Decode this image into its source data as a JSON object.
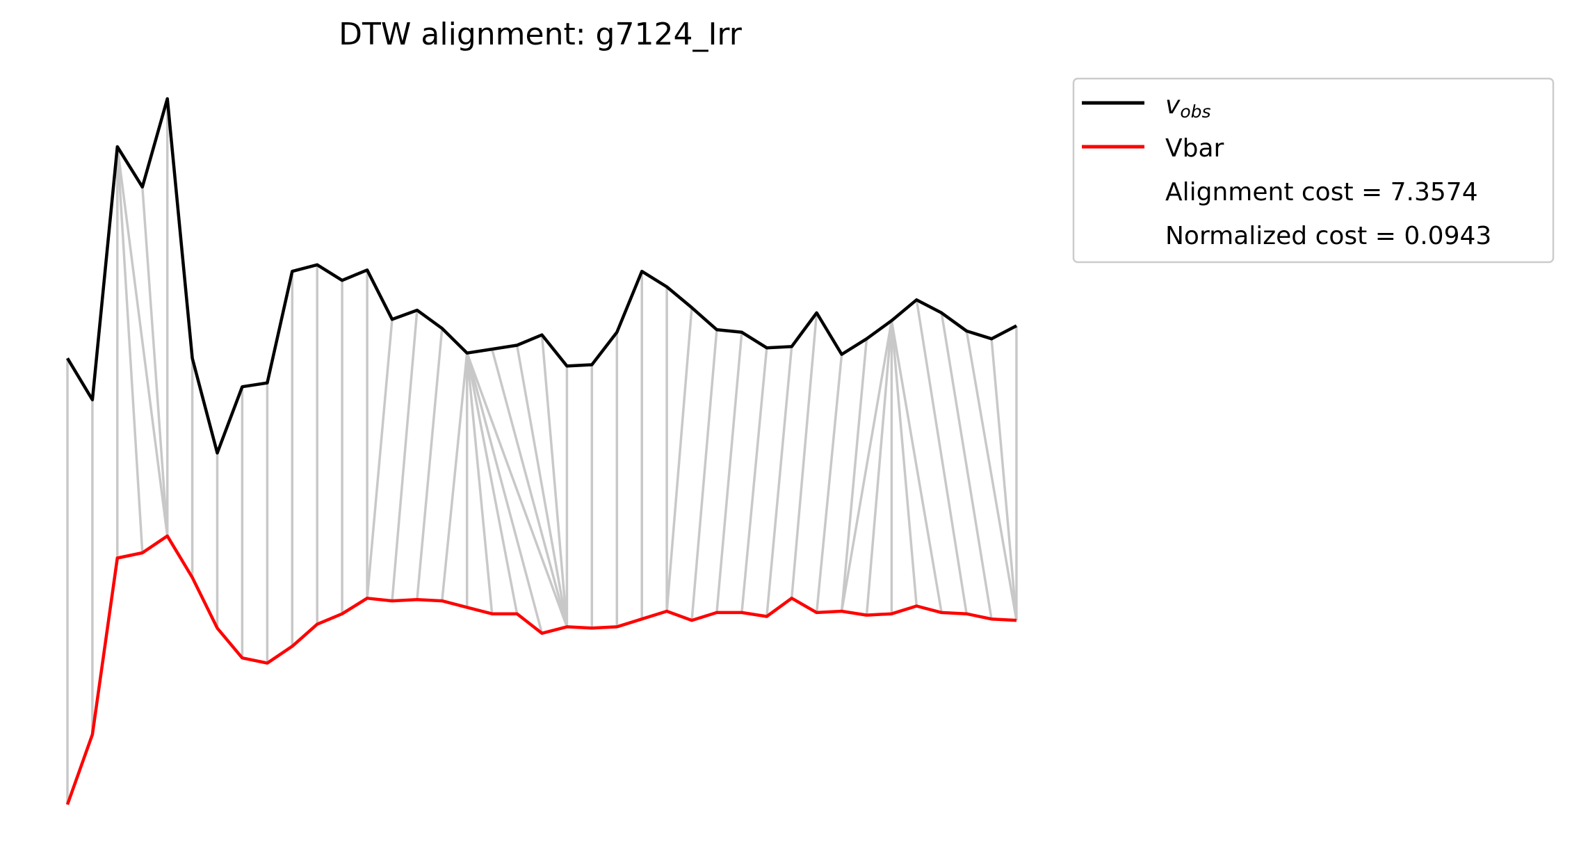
{
  "chart_data": {
    "type": "line",
    "title": "DTW alignment: g7124_Irr",
    "xlabel": "",
    "ylabel": "",
    "axes_visible": false,
    "grid": false,
    "legend_position": "upper-left outside plot area",
    "x": [
      0,
      1,
      2,
      3,
      4,
      5,
      6,
      7,
      8,
      9,
      10,
      11,
      12,
      13,
      14,
      15,
      16,
      17,
      18,
      19,
      20,
      21,
      22,
      23,
      24,
      25,
      26,
      27,
      28,
      29,
      30,
      31,
      32,
      33,
      34,
      35,
      36,
      37,
      38
    ],
    "series": [
      {
        "name": "v_obs",
        "color": "#000000",
        "values": [
          3.14,
          2.82,
          4.77,
          4.46,
          5.14,
          3.14,
          2.41,
          2.92,
          2.95,
          3.81,
          3.86,
          3.74,
          3.82,
          3.44,
          3.51,
          3.37,
          3.18,
          3.21,
          3.24,
          3.32,
          3.08,
          3.09,
          3.34,
          3.81,
          3.69,
          3.53,
          3.36,
          3.34,
          3.22,
          3.23,
          3.49,
          3.17,
          3.29,
          3.43,
          3.59,
          3.49,
          3.35,
          3.29,
          3.39
        ]
      },
      {
        "name": "Vbar",
        "color": "#ff0000",
        "values": [
          -0.3,
          0.24,
          1.6,
          1.64,
          1.77,
          1.45,
          1.06,
          0.83,
          0.79,
          0.92,
          1.09,
          1.17,
          1.29,
          1.27,
          1.28,
          1.27,
          1.22,
          1.17,
          1.17,
          1.02,
          1.07,
          1.06,
          1.07,
          1.13,
          1.19,
          1.12,
          1.18,
          1.18,
          1.15,
          1.29,
          1.18,
          1.19,
          1.16,
          1.17,
          1.23,
          1.18,
          1.17,
          1.13,
          1.12
        ]
      }
    ],
    "alignment_pairs": [
      [
        0,
        0
      ],
      [
        1,
        1
      ],
      [
        2,
        2
      ],
      [
        2,
        3
      ],
      [
        2,
        4
      ],
      [
        3,
        4
      ],
      [
        4,
        4
      ],
      [
        5,
        5
      ],
      [
        6,
        6
      ],
      [
        7,
        7
      ],
      [
        8,
        8
      ],
      [
        9,
        9
      ],
      [
        10,
        10
      ],
      [
        11,
        11
      ],
      [
        12,
        12
      ],
      [
        13,
        12
      ],
      [
        14,
        13
      ],
      [
        15,
        14
      ],
      [
        16,
        15
      ],
      [
        16,
        16
      ],
      [
        16,
        17
      ],
      [
        16,
        18
      ],
      [
        16,
        19
      ],
      [
        16,
        20
      ],
      [
        17,
        20
      ],
      [
        18,
        20
      ],
      [
        19,
        20
      ],
      [
        20,
        20
      ],
      [
        21,
        21
      ],
      [
        22,
        22
      ],
      [
        23,
        23
      ],
      [
        24,
        24
      ],
      [
        25,
        24
      ],
      [
        26,
        25
      ],
      [
        27,
        26
      ],
      [
        28,
        27
      ],
      [
        29,
        28
      ],
      [
        30,
        29
      ],
      [
        31,
        30
      ],
      [
        32,
        31
      ],
      [
        33,
        31
      ],
      [
        33,
        32
      ],
      [
        33,
        33
      ],
      [
        33,
        34
      ],
      [
        33,
        35
      ],
      [
        34,
        36
      ],
      [
        35,
        37
      ],
      [
        36,
        38
      ],
      [
        37,
        38
      ],
      [
        38,
        38
      ]
    ],
    "connector_color": "#c8c8c8",
    "legend": {
      "entries": [
        {
          "label": "v_obs",
          "color": "#000000"
        },
        {
          "label": "Vbar",
          "color": "#ff0000"
        },
        {
          "label": "Alignment cost = 7.3574",
          "color": null
        },
        {
          "label": "Normalized cost = 0.0943",
          "color": null
        }
      ]
    }
  }
}
